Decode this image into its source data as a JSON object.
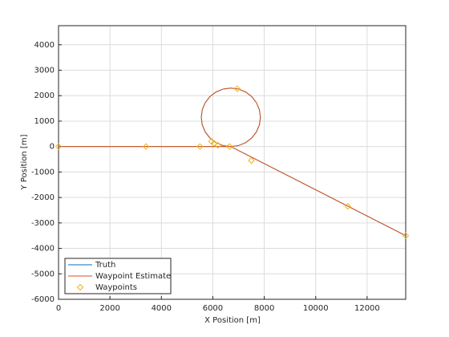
{
  "chart_data": {
    "type": "line",
    "xlabel": "X Position [m]",
    "ylabel": "Y Position [m]",
    "xlim": [
      0,
      13500
    ],
    "ylim": [
      -6000,
      4750
    ],
    "xticks": [
      0,
      2000,
      4000,
      6000,
      8000,
      10000,
      12000
    ],
    "yticks": [
      -6000,
      -5000,
      -4000,
      -3000,
      -2000,
      -1000,
      0,
      1000,
      2000,
      3000,
      4000
    ],
    "grid": true,
    "legend": "lower left",
    "series": [
      {
        "name": "Truth",
        "color": "#0072bd",
        "marker": "none",
        "x": [
          0,
          6700,
          6998,
          7275,
          7513,
          7696,
          7811,
          7850,
          7811,
          7696,
          7513,
          7275,
          6998,
          6700,
          6402,
          6125,
          5887,
          5704,
          5589,
          5550,
          5589,
          5704,
          5887,
          6125,
          6402,
          6700,
          13500
        ],
        "values": [
          0,
          0,
          39,
          154,
          337,
          575,
          852,
          1150,
          1448,
          1725,
          1963,
          2146,
          2261,
          2300,
          2261,
          2146,
          1963,
          1725,
          1448,
          1150,
          852,
          575,
          337,
          154,
          39,
          0,
          -3500
        ]
      },
      {
        "name": "Waypoint Estimate",
        "color": "#d95319",
        "marker": "none",
        "x": [
          0,
          6700,
          6998,
          7275,
          7513,
          7696,
          7811,
          7850,
          7811,
          7696,
          7513,
          7275,
          6998,
          6700,
          6402,
          6125,
          5887,
          5704,
          5589,
          5550,
          5589,
          5704,
          5887,
          6125,
          6402,
          6700,
          13500
        ],
        "values": [
          0,
          0,
          39,
          154,
          337,
          575,
          852,
          1150,
          1448,
          1725,
          1963,
          2146,
          2261,
          2300,
          2261,
          2146,
          1963,
          1725,
          1448,
          1150,
          852,
          575,
          337,
          154,
          39,
          0,
          -3500
        ]
      },
      {
        "name": "Waypoints",
        "color": "#edb120",
        "marker": "diamond",
        "x": [
          0,
          3400,
          5500,
          5950,
          6050,
          6200,
          6650,
          6950,
          7500,
          11250,
          13500
        ],
        "values": [
          0,
          0,
          0,
          200,
          130,
          50,
          0,
          2270,
          -550,
          -2350,
          -3500
        ]
      }
    ]
  }
}
